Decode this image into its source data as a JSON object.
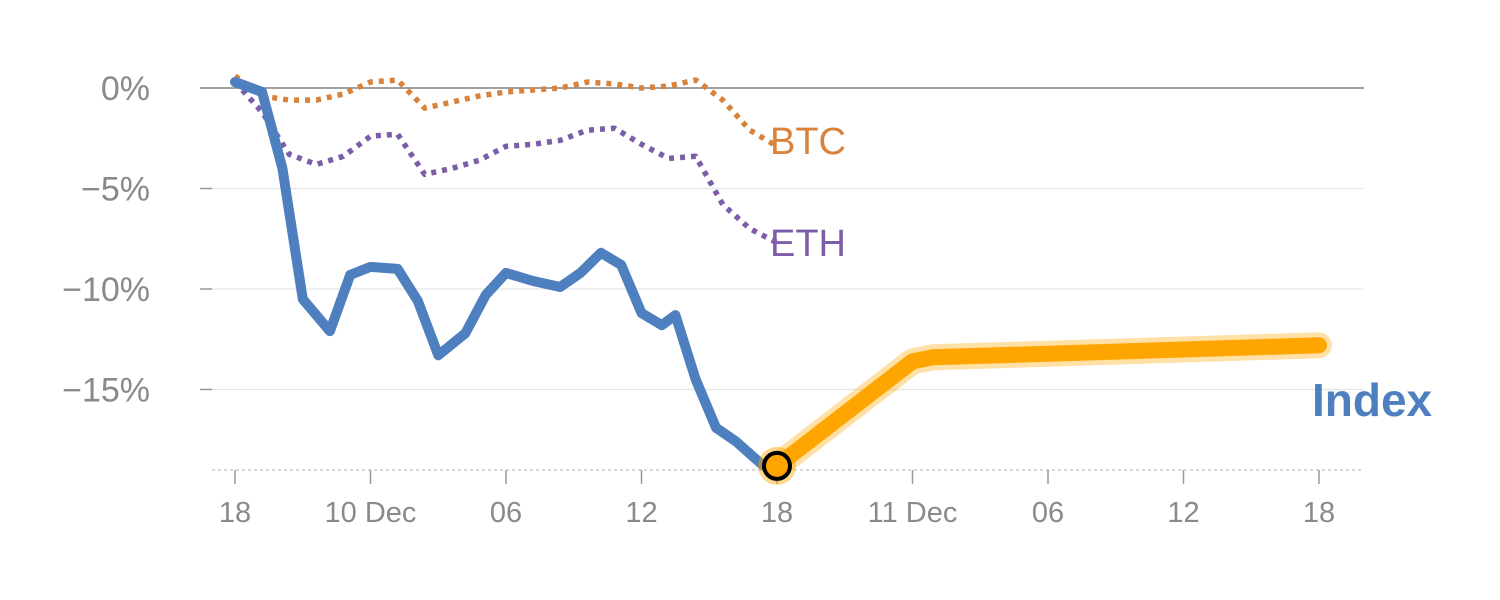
{
  "chart_data": {
    "type": "line",
    "y_unit": "%",
    "ylim": [
      -19.5,
      0.5
    ],
    "y_ticks": [
      0,
      -5,
      -10,
      -15
    ],
    "y_tick_labels": [
      "0%",
      "−5%",
      "−10%",
      "−15%"
    ],
    "x_ticks": [
      {
        "day": 0,
        "label": "18"
      },
      {
        "day": 10,
        "label": "10 Dec"
      },
      {
        "day": 20,
        "label": "06"
      },
      {
        "day": 30,
        "label": "12"
      },
      {
        "day": 40,
        "label": "18"
      },
      {
        "day": 50,
        "label": "11 Dec"
      },
      {
        "day": 60,
        "label": "06"
      },
      {
        "day": 70,
        "label": "12"
      },
      {
        "day": 80,
        "label": "18"
      }
    ],
    "grid": true,
    "colors": {
      "index": "#4e7fbe",
      "btc": "#d9823b",
      "eth": "#7b5ea7",
      "projection": "#ffa500",
      "marker_fill": "#ffa500",
      "marker_stroke": "#000000"
    },
    "series": [
      {
        "name": "BTC",
        "style": "dotted",
        "x": [
          0,
          2,
          4,
          6,
          8,
          10,
          12,
          14,
          16,
          18,
          20,
          22,
          24,
          26,
          28,
          30,
          32,
          34,
          36,
          38,
          40
        ],
        "y": [
          0.6,
          -0.4,
          -0.6,
          -0.6,
          -0.3,
          0.3,
          0.4,
          -1.0,
          -0.7,
          -0.4,
          -0.2,
          -0.1,
          0.0,
          0.3,
          0.2,
          0.0,
          0.1,
          0.4,
          -0.6,
          -2.1,
          -2.9
        ]
      },
      {
        "name": "ETH",
        "style": "dotted",
        "x": [
          0,
          2,
          4,
          6,
          8,
          10,
          12,
          14,
          16,
          18,
          20,
          22,
          24,
          26,
          28,
          30,
          32,
          34,
          36,
          38,
          40
        ],
        "y": [
          0.3,
          -1.2,
          -3.3,
          -3.8,
          -3.4,
          -2.4,
          -2.3,
          -4.3,
          -4.0,
          -3.6,
          -2.9,
          -2.8,
          -2.6,
          -2.1,
          -2.0,
          -2.8,
          -3.5,
          -3.4,
          -5.8,
          -7.0,
          -7.7
        ]
      },
      {
        "name": "Index",
        "style": "solid",
        "x": [
          0,
          2,
          3.5,
          5,
          7,
          8.5,
          10,
          12,
          13.5,
          15,
          17,
          18.5,
          20,
          22,
          24,
          25.5,
          27,
          28.5,
          30,
          31.5,
          32.5,
          34,
          35.5,
          37,
          39,
          40
        ],
        "y": [
          0.3,
          -0.2,
          -4.0,
          -10.5,
          -12.1,
          -9.3,
          -8.9,
          -9.0,
          -10.6,
          -13.3,
          -12.2,
          -10.3,
          -9.2,
          -9.6,
          -9.9,
          -9.2,
          -8.2,
          -8.8,
          -11.2,
          -11.8,
          -11.3,
          -14.5,
          -16.9,
          -17.6,
          -18.8,
          -18.8
        ]
      },
      {
        "role": "projection",
        "x": [
          40,
          50,
          51.5,
          80
        ],
        "y": [
          -18.8,
          -13.6,
          -13.4,
          -12.8
        ]
      }
    ],
    "marker": {
      "x": 40,
      "y": -18.8
    }
  },
  "labels": {
    "btc": "BTC",
    "eth": "ETH",
    "index": "Index"
  }
}
